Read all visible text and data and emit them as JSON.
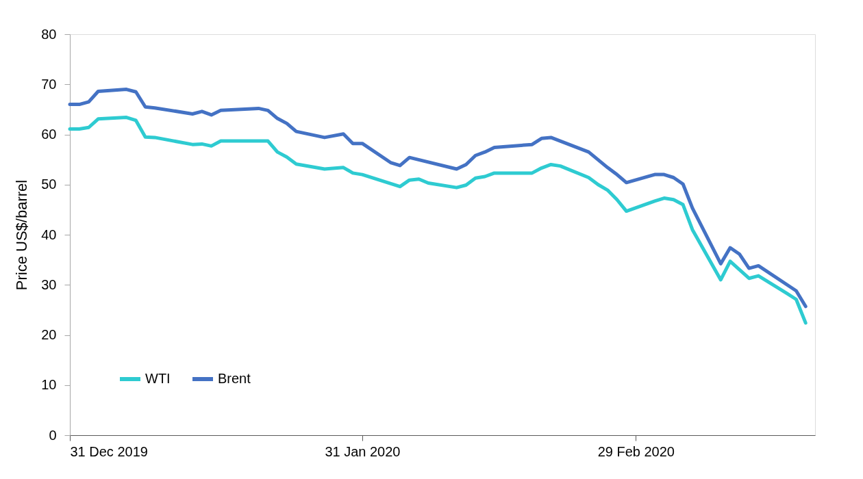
{
  "chart_data": {
    "type": "line",
    "ylabel": "Price US$/barrel",
    "xlim": [
      "2019-12-31",
      "2020-03-19"
    ],
    "xticks": [
      {
        "value": "2019-12-31",
        "label": "31 Dec 2019"
      },
      {
        "value": "2020-01-31",
        "label": "31 Jan 2020"
      },
      {
        "value": "2020-02-29",
        "label": "29 Feb 2020"
      }
    ],
    "ylim": [
      0,
      80
    ],
    "yticks": [
      0,
      10,
      20,
      30,
      40,
      50,
      60,
      70,
      80
    ],
    "grid": false,
    "legend": "bottom left",
    "marker": "none",
    "line_style": "solid",
    "series": [
      {
        "name": "WTI",
        "color": "#2ecbd1",
        "x": [
          "2019-12-31",
          "2020-01-01",
          "2020-01-02",
          "2020-01-03",
          "2020-01-06",
          "2020-01-07",
          "2020-01-08",
          "2020-01-09",
          "2020-01-13",
          "2020-01-14",
          "2020-01-15",
          "2020-01-16",
          "2020-01-21",
          "2020-01-22",
          "2020-01-23",
          "2020-01-24",
          "2020-01-27",
          "2020-01-29",
          "2020-01-30",
          "2020-01-31",
          "2020-02-04",
          "2020-02-05",
          "2020-02-06",
          "2020-02-07",
          "2020-02-10",
          "2020-02-11",
          "2020-02-12",
          "2020-02-13",
          "2020-02-14",
          "2020-02-18",
          "2020-02-19",
          "2020-02-20",
          "2020-02-21",
          "2020-02-24",
          "2020-02-25",
          "2020-02-26",
          "2020-02-27",
          "2020-02-28",
          "2020-03-02",
          "2020-03-03",
          "2020-03-04",
          "2020-03-05",
          "2020-03-06",
          "2020-03-09",
          "2020-03-10",
          "2020-03-12",
          "2020-03-13",
          "2020-03-16",
          "2020-03-17",
          "2020-03-18"
        ],
        "values": [
          61.1,
          61.1,
          61.4,
          63.1,
          63.4,
          62.8,
          59.5,
          59.4,
          58.0,
          58.1,
          57.7,
          58.7,
          58.7,
          56.5,
          55.5,
          54.1,
          53.1,
          53.4,
          52.3,
          52.0,
          49.6,
          50.9,
          51.1,
          50.3,
          49.4,
          49.9,
          51.3,
          51.6,
          52.3,
          52.3,
          53.3,
          54.0,
          53.7,
          51.4,
          50.0,
          48.9,
          47.0,
          44.7,
          46.7,
          47.3,
          47.0,
          46.0,
          41.0,
          31.0,
          34.7,
          31.3,
          31.8,
          28.3,
          27.1,
          22.4
        ]
      },
      {
        "name": "Brent",
        "color": "#4472c4",
        "x": [
          "2019-12-31",
          "2020-01-01",
          "2020-01-02",
          "2020-01-03",
          "2020-01-06",
          "2020-01-07",
          "2020-01-08",
          "2020-01-09",
          "2020-01-13",
          "2020-01-14",
          "2020-01-15",
          "2020-01-16",
          "2020-01-20",
          "2020-01-21",
          "2020-01-22",
          "2020-01-23",
          "2020-01-24",
          "2020-01-27",
          "2020-01-29",
          "2020-01-30",
          "2020-01-31",
          "2020-02-03",
          "2020-02-04",
          "2020-02-05",
          "2020-02-10",
          "2020-02-11",
          "2020-02-12",
          "2020-02-13",
          "2020-02-14",
          "2020-02-18",
          "2020-02-19",
          "2020-02-20",
          "2020-02-24",
          "2020-02-26",
          "2020-02-27",
          "2020-02-28",
          "2020-03-02",
          "2020-03-03",
          "2020-03-04",
          "2020-03-05",
          "2020-03-06",
          "2020-03-09",
          "2020-03-10",
          "2020-03-11",
          "2020-03-12",
          "2020-03-13",
          "2020-03-17",
          "2020-03-18"
        ],
        "values": [
          66.0,
          66.0,
          66.5,
          68.6,
          69.0,
          68.5,
          65.5,
          65.3,
          64.1,
          64.6,
          63.9,
          64.8,
          65.2,
          64.8,
          63.2,
          62.2,
          60.6,
          59.4,
          60.1,
          58.2,
          58.2,
          54.4,
          53.8,
          55.4,
          53.1,
          54.0,
          55.8,
          56.5,
          57.4,
          58.0,
          59.2,
          59.4,
          56.5,
          53.4,
          52.0,
          50.4,
          52.0,
          52.0,
          51.4,
          50.1,
          45.3,
          34.2,
          37.4,
          36.1,
          33.3,
          33.8,
          28.8,
          25.7
        ]
      }
    ]
  }
}
